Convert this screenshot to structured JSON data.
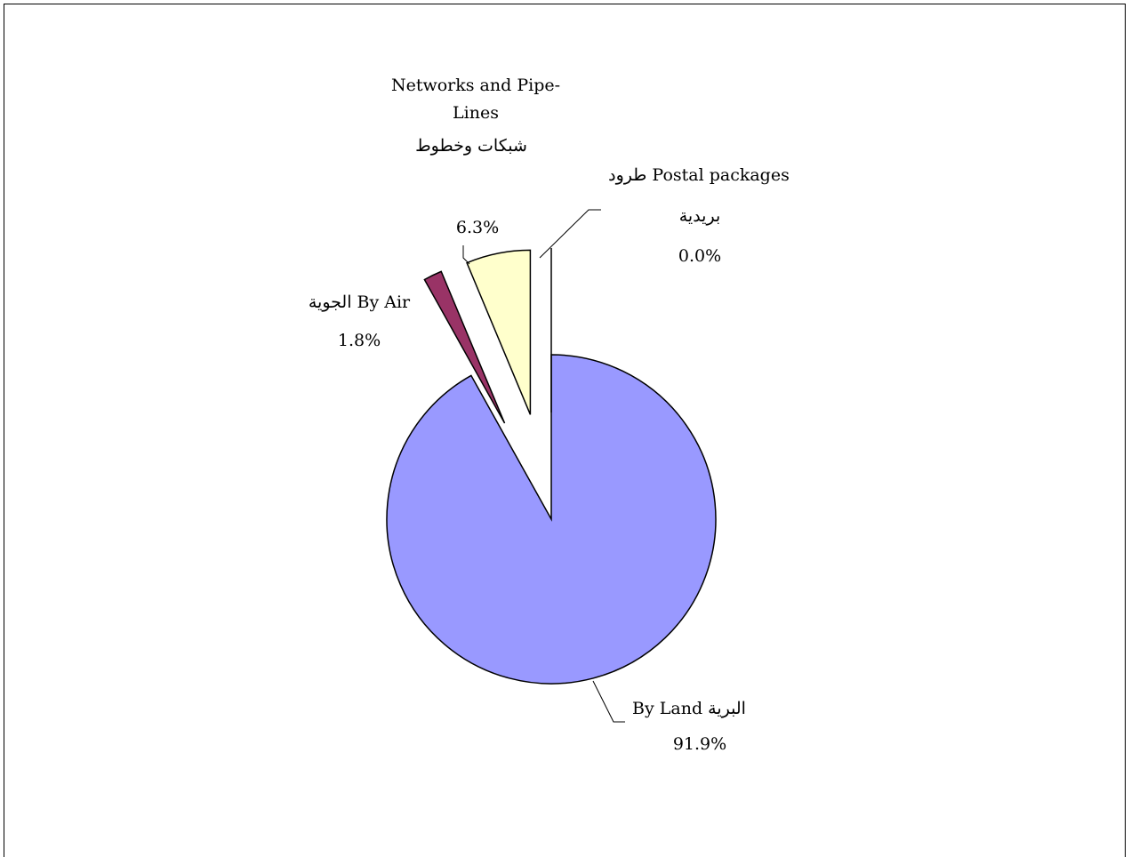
{
  "chart_data": {
    "type": "pie",
    "exploded": true,
    "slices": [
      {
        "label_en": "By Land",
        "label_ar": "البرية",
        "value": 91.9,
        "value_label": "91.9%",
        "color": "#9999ff"
      },
      {
        "label_en": "By Air",
        "label_ar": "الجوية",
        "value": 1.8,
        "value_label": "1.8%",
        "color": "#993366"
      },
      {
        "label_en": "Networks and Pipe-Lines",
        "label_en_lines": [
          "Networks and Pipe-",
          "Lines"
        ],
        "label_ar": "شبكات وخطوط",
        "value": 6.3,
        "value_label": "6.3%",
        "color": "#ffffcc"
      },
      {
        "label_en": "Postal packages",
        "label_ar": "طرود",
        "label_ar_line2": "بريدية",
        "value": 0.0,
        "value_label": "0.0%",
        "color": "#ffffff"
      }
    ],
    "title": "",
    "legend": "none",
    "labels": {
      "land_line1": "البرية By Land",
      "land_value": "91.9%",
      "air_line1": "الجوية By Air",
      "air_value": "1.8%",
      "net_line1": "Networks and Pipe-",
      "net_line2": "Lines",
      "net_line3": "شبكات وخطوط",
      "net_value": "6.3%",
      "postal_line1": "طرود Postal packages",
      "postal_line2": "بريدية",
      "postal_value": "0.0%"
    }
  }
}
